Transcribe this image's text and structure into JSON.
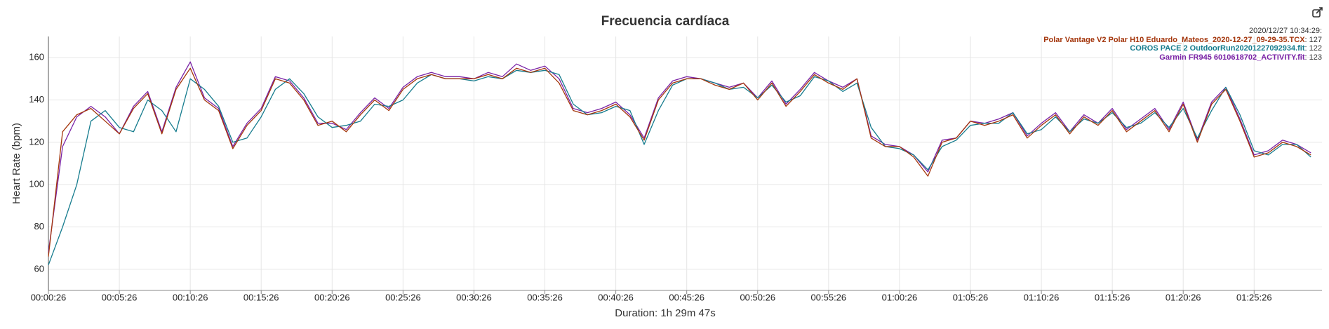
{
  "chart_data": {
    "type": "line",
    "title": "Frecuencia cardíaca",
    "xlabel": "Duration: 1h 29m 47s",
    "ylabel": "Heart Rate (bpm)",
    "hover_time": "2020/12/27 10:34:29:",
    "x": [
      26,
      86,
      146,
      206,
      266,
      326,
      386,
      446,
      506,
      566,
      626,
      686,
      746,
      806,
      866,
      926,
      986,
      1046,
      1106,
      1166,
      1226,
      1286,
      1346,
      1406,
      1466,
      1526,
      1586,
      1646,
      1706,
      1766,
      1826,
      1886,
      1946,
      2006,
      2066,
      2126,
      2186,
      2246,
      2306,
      2366,
      2426,
      2486,
      2546,
      2606,
      2666,
      2726,
      2786,
      2846,
      2906,
      2966,
      3026,
      3086,
      3146,
      3206,
      3266,
      3326,
      3386,
      3446,
      3506,
      3566,
      3626,
      3686,
      3746,
      3806,
      3866,
      3926,
      3986,
      4046,
      4106,
      4166,
      4226,
      4286,
      4346,
      4406,
      4466,
      4526,
      4586,
      4646,
      4706,
      4766,
      4826,
      4886,
      4946,
      5006,
      5066,
      5126,
      5186,
      5246,
      5306,
      5366
    ],
    "series": [
      {
        "name": "Polar Vantage V2 Polar H10 Eduardo_Mateos_2020-12-27_09-29-35.TCX",
        "color": "#a4360c",
        "hover_value": 127,
        "hover_label": ": 127",
        "values": [
          66,
          125,
          133,
          136,
          130,
          124,
          136,
          143,
          124,
          145,
          155,
          140,
          135,
          117,
          128,
          135,
          150,
          148,
          140,
          128,
          130,
          125,
          133,
          140,
          135,
          145,
          150,
          152,
          150,
          150,
          150,
          152,
          150,
          155,
          153,
          155,
          148,
          135,
          133,
          135,
          138,
          132,
          121,
          140,
          148,
          150,
          150,
          147,
          145,
          148,
          140,
          148,
          137,
          144,
          152,
          148,
          145,
          150,
          122,
          118,
          118,
          113,
          104,
          120,
          122,
          130,
          128,
          130,
          133,
          122,
          128,
          133,
          124,
          132,
          128,
          135,
          125,
          130,
          135,
          125,
          138,
          120,
          138,
          145,
          130,
          113,
          115,
          120,
          118,
          114
        ]
      },
      {
        "name": "COROS PACE 2 OutdoorRun20201227092934.fit",
        "color": "#167c8e",
        "hover_value": 122,
        "hover_label": ": 122",
        "values": [
          62,
          80,
          100,
          130,
          135,
          127,
          125,
          140,
          135,
          125,
          150,
          145,
          137,
          120,
          122,
          132,
          145,
          150,
          143,
          132,
          127,
          128,
          130,
          138,
          137,
          140,
          148,
          152,
          150,
          150,
          149,
          151,
          150,
          154,
          153,
          154,
          152,
          138,
          133,
          134,
          137,
          135,
          119,
          135,
          147,
          150,
          150,
          148,
          145,
          146,
          141,
          147,
          139,
          142,
          151,
          149,
          144,
          148,
          127,
          118,
          117,
          114,
          107,
          118,
          121,
          128,
          129,
          129,
          134,
          124,
          126,
          132,
          125,
          131,
          129,
          134,
          127,
          129,
          134,
          127,
          136,
          122,
          135,
          146,
          133,
          116,
          114,
          119,
          119,
          113
        ]
      },
      {
        "name": "Garmin FR945 6010618702_ACTIVITY.fit",
        "color": "#7a22a6",
        "hover_value": 123,
        "hover_label": ": 123",
        "values": [
          68,
          118,
          132,
          137,
          132,
          124,
          137,
          144,
          125,
          146,
          158,
          141,
          136,
          118,
          129,
          136,
          151,
          149,
          141,
          129,
          129,
          126,
          134,
          141,
          136,
          146,
          151,
          153,
          151,
          151,
          150,
          153,
          151,
          157,
          154,
          156,
          150,
          136,
          134,
          136,
          139,
          133,
          122,
          141,
          149,
          151,
          150,
          148,
          146,
          148,
          141,
          149,
          138,
          145,
          153,
          149,
          146,
          150,
          123,
          119,
          118,
          114,
          106,
          121,
          122,
          130,
          129,
          131,
          134,
          123,
          129,
          134,
          125,
          133,
          129,
          136,
          126,
          131,
          136,
          126,
          139,
          121,
          139,
          146,
          131,
          114,
          116,
          121,
          119,
          115
        ]
      }
    ],
    "xlim": [
      26,
      5413
    ],
    "xticks": [
      {
        "value": 26,
        "label": "00:00:26"
      },
      {
        "value": 326,
        "label": "00:05:26"
      },
      {
        "value": 626,
        "label": "00:10:26"
      },
      {
        "value": 926,
        "label": "00:15:26"
      },
      {
        "value": 1226,
        "label": "00:20:26"
      },
      {
        "value": 1526,
        "label": "00:25:26"
      },
      {
        "value": 1826,
        "label": "00:30:26"
      },
      {
        "value": 2126,
        "label": "00:35:26"
      },
      {
        "value": 2426,
        "label": "00:40:26"
      },
      {
        "value": 2726,
        "label": "00:45:26"
      },
      {
        "value": 3026,
        "label": "00:50:26"
      },
      {
        "value": 3326,
        "label": "00:55:26"
      },
      {
        "value": 3626,
        "label": "01:00:26"
      },
      {
        "value": 3926,
        "label": "01:05:26"
      },
      {
        "value": 4226,
        "label": "01:10:26"
      },
      {
        "value": 4526,
        "label": "01:15:26"
      },
      {
        "value": 4826,
        "label": "01:20:26"
      },
      {
        "value": 5126,
        "label": "01:25:26"
      }
    ],
    "ylim": [
      50,
      170
    ],
    "yticks": [
      60,
      80,
      100,
      120,
      140,
      160
    ],
    "grid": true
  }
}
